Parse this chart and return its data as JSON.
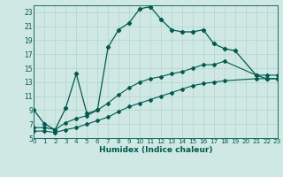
{
  "xlabel": "Humidex (Indice chaleur)",
  "bg_color": "#cfe8e4",
  "grid_color": "#b0d4cc",
  "line_color": "#005a4e",
  "xlim": [
    0,
    23
  ],
  "ylim": [
    5,
    24
  ],
  "yticks": [
    5,
    7,
    9,
    11,
    13,
    15,
    17,
    19,
    21,
    23
  ],
  "xticks": [
    0,
    1,
    2,
    3,
    4,
    5,
    6,
    7,
    8,
    9,
    10,
    11,
    12,
    13,
    14,
    15,
    16,
    17,
    18,
    19,
    20,
    21,
    22,
    23
  ],
  "line1_x": [
    0,
    1,
    2,
    3,
    4,
    5,
    6,
    7,
    8,
    9,
    10,
    11,
    12,
    13,
    14,
    15,
    16,
    17,
    18,
    19,
    21,
    22,
    23
  ],
  "line1_y": [
    9.0,
    7.0,
    6.2,
    9.3,
    14.2,
    8.5,
    9.0,
    18.0,
    20.5,
    21.5,
    23.5,
    23.8,
    22.0,
    20.5,
    20.2,
    20.2,
    20.5,
    18.5,
    17.8,
    17.5,
    14.0,
    13.5,
    13.5
  ],
  "line2_x": [
    0,
    1,
    2,
    3,
    4,
    5,
    6,
    7,
    8,
    9,
    10,
    11,
    12,
    13,
    14,
    15,
    16,
    17,
    18,
    21,
    22,
    23
  ],
  "line2_y": [
    6.5,
    6.5,
    6.2,
    7.2,
    7.8,
    8.2,
    9.0,
    10.0,
    11.2,
    12.2,
    13.0,
    13.5,
    13.8,
    14.2,
    14.5,
    15.0,
    15.5,
    15.5,
    16.0,
    14.0,
    14.0,
    14.0
  ],
  "line3_x": [
    0,
    1,
    2,
    3,
    4,
    5,
    6,
    7,
    8,
    9,
    10,
    11,
    12,
    13,
    14,
    15,
    16,
    17,
    18,
    21,
    22,
    23
  ],
  "line3_y": [
    6.0,
    6.0,
    5.8,
    6.2,
    6.5,
    7.0,
    7.5,
    8.0,
    8.8,
    9.5,
    10.0,
    10.5,
    11.0,
    11.5,
    12.0,
    12.5,
    12.8,
    13.0,
    13.2,
    13.5,
    13.5,
    13.5
  ]
}
